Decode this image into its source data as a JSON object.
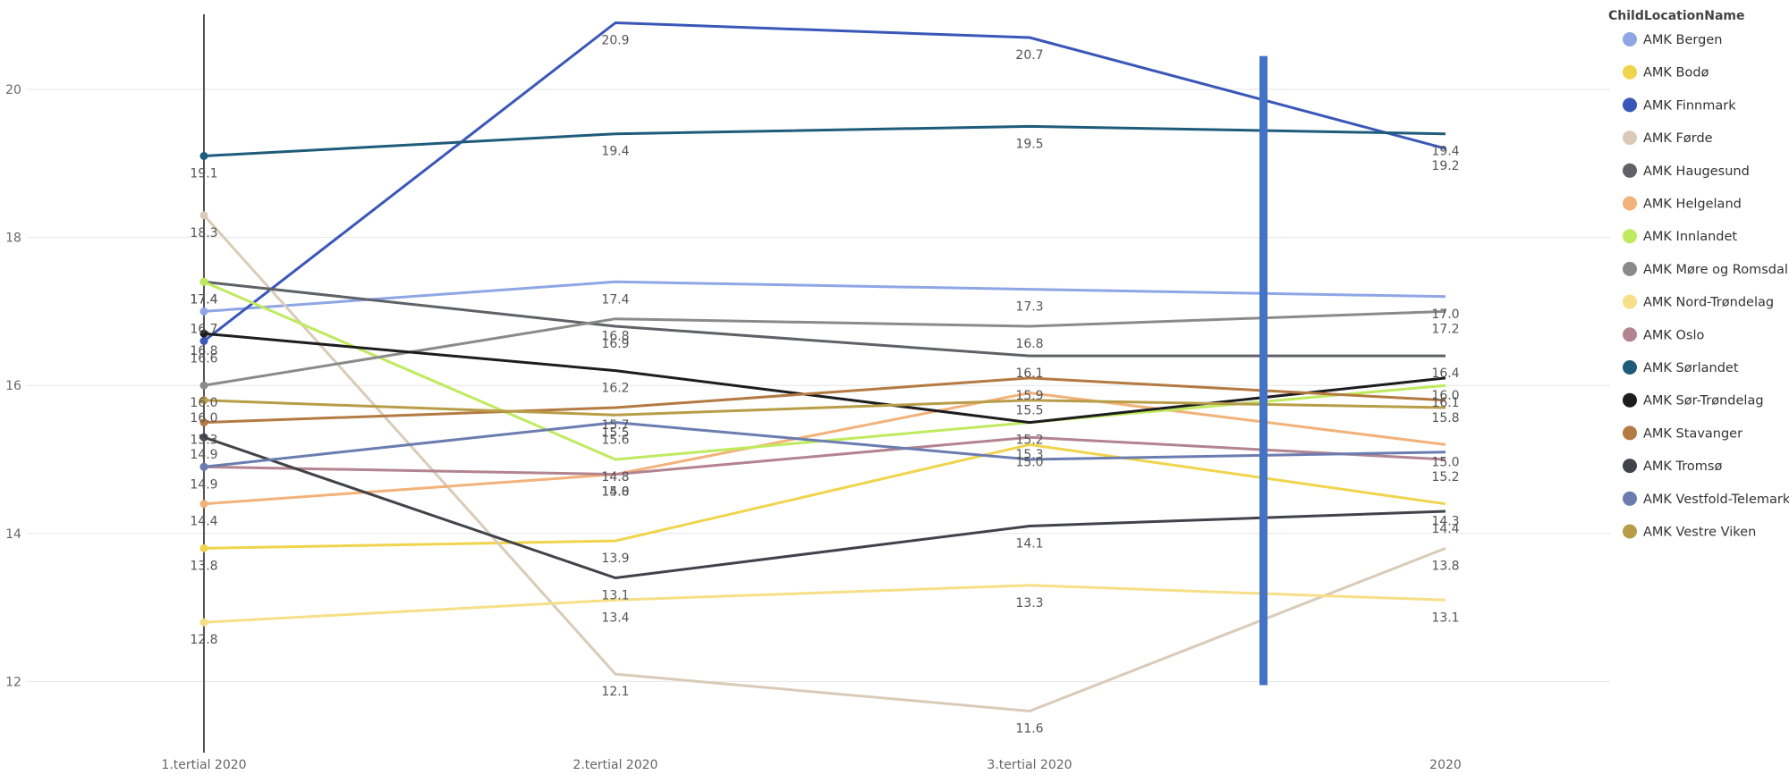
{
  "chart_data": {
    "type": "line",
    "title": "",
    "xlabel": "",
    "ylabel": "",
    "categories": [
      "1.tertial 2020",
      "2.tertial 2020",
      "3.tertial 2020",
      "2020"
    ],
    "ylim": [
      11.25,
      21.0
    ],
    "y_ticks": [
      12,
      14,
      16,
      18,
      20
    ],
    "grid": true,
    "legend_title": "ChildLocationName",
    "legend_position": "right",
    "series": [
      {
        "name": "AMK Bergen",
        "color": "#8ea6e6",
        "values": [
          17.0,
          17.4,
          17.3,
          17.2
        ]
      },
      {
        "name": "AMK Bodø",
        "color": "#f0d44c",
        "values": [
          13.8,
          13.9,
          15.2,
          14.4
        ]
      },
      {
        "name": "AMK Finnmark",
        "color": "#3a57b8",
        "values": [
          16.6,
          20.9,
          20.7,
          19.2
        ]
      },
      {
        "name": "AMK Førde",
        "color": "#d9cbb8",
        "values": [
          18.3,
          12.1,
          11.6,
          13.8
        ]
      },
      {
        "name": "AMK Haugesund",
        "color": "#5f6166",
        "values": [
          17.4,
          16.8,
          16.4,
          16.4
        ]
      },
      {
        "name": "AMK Helgeland",
        "color": "#f2b27a",
        "values": [
          14.4,
          14.8,
          15.9,
          15.2
        ]
      },
      {
        "name": "AMK Innlandet",
        "color": "#c0ea5e",
        "values": [
          17.4,
          15.0,
          15.5,
          16.0
        ]
      },
      {
        "name": "AMK Møre og Romsdal",
        "color": "#8a8a8a",
        "values": [
          16.0,
          16.9,
          16.8,
          17.0
        ]
      },
      {
        "name": "AMK Nord-Trøndelag",
        "color": "#f6df86",
        "values": [
          12.8,
          13.1,
          13.3,
          13.1
        ]
      },
      {
        "name": "AMK Oslo",
        "color": "#b2848f",
        "values": [
          14.9,
          14.8,
          15.3,
          15.0
        ]
      },
      {
        "name": "AMK Sørlandet",
        "color": "#1f5b7a",
        "values": [
          19.1,
          19.4,
          19.5,
          19.4
        ]
      },
      {
        "name": "AMK Sør-Trøndelag",
        "color": "#1d1d1f",
        "values": [
          16.7,
          16.2,
          15.5,
          16.1
        ]
      },
      {
        "name": "AMK Stavanger",
        "color": "#b37a42",
        "values": [
          15.5,
          15.7,
          16.1,
          15.8
        ]
      },
      {
        "name": "AMK Tromsø",
        "color": "#404349",
        "values": [
          15.3,
          13.4,
          14.1,
          14.3
        ]
      },
      {
        "name": "AMK Vestfold-Telemark",
        "color": "#6b7cb0",
        "values": [
          14.9,
          15.5,
          15.0,
          15.1
        ]
      },
      {
        "name": "AMK Vestre Viken",
        "color": "#b89d48",
        "values": [
          15.8,
          15.6,
          15.8,
          15.7
        ]
      }
    ],
    "data_labels": [
      {
        "category": 0,
        "y": 19.1,
        "text": "19.1"
      },
      {
        "category": 0,
        "y": 18.3,
        "text": "18.3"
      },
      {
        "category": 0,
        "y": 17.4,
        "text": "17.4"
      },
      {
        "category": 0,
        "y": 17.4,
        "text": "17.4"
      },
      {
        "category": 0,
        "y": 17.0,
        "text": "16.7"
      },
      {
        "category": 0,
        "y": 16.7,
        "text": "16.8"
      },
      {
        "category": 0,
        "y": 16.6,
        "text": "16.6"
      },
      {
        "category": 0,
        "y": 16.0,
        "text": "16.0"
      },
      {
        "category": 0,
        "y": 15.8,
        "text": "16.0"
      },
      {
        "category": 0,
        "y": 15.5,
        "text": "15.3"
      },
      {
        "category": 0,
        "y": 15.3,
        "text": "14.9"
      },
      {
        "category": 0,
        "y": 14.9,
        "text": "14.9"
      },
      {
        "category": 0,
        "y": 14.4,
        "text": "14.4"
      },
      {
        "category": 0,
        "y": 13.8,
        "text": "13.8"
      },
      {
        "category": 0,
        "y": 12.8,
        "text": "12.8"
      },
      {
        "category": 1,
        "y": 20.9,
        "text": "20.9"
      },
      {
        "category": 1,
        "y": 19.4,
        "text": "19.4"
      },
      {
        "category": 1,
        "y": 17.4,
        "text": "17.4"
      },
      {
        "category": 1,
        "y": 16.9,
        "text": "16.8"
      },
      {
        "category": 1,
        "y": 16.8,
        "text": "16.9"
      },
      {
        "category": 1,
        "y": 16.2,
        "text": "16.2"
      },
      {
        "category": 1,
        "y": 15.7,
        "text": "15.7"
      },
      {
        "category": 1,
        "y": 15.6,
        "text": "15.5"
      },
      {
        "category": 1,
        "y": 15.5,
        "text": "15.6"
      },
      {
        "category": 1,
        "y": 15.0,
        "text": "14.8"
      },
      {
        "category": 1,
        "y": 14.8,
        "text": "15.0"
      },
      {
        "category": 1,
        "y": 14.8,
        "text": "14.8"
      },
      {
        "category": 1,
        "y": 13.9,
        "text": "13.9"
      },
      {
        "category": 1,
        "y": 13.4,
        "text": "13.1"
      },
      {
        "category": 1,
        "y": 13.1,
        "text": "13.4"
      },
      {
        "category": 1,
        "y": 12.1,
        "text": "12.1"
      },
      {
        "category": 2,
        "y": 20.7,
        "text": "20.7"
      },
      {
        "category": 2,
        "y": 19.5,
        "text": "19.5"
      },
      {
        "category": 2,
        "y": 17.3,
        "text": "17.3"
      },
      {
        "category": 2,
        "y": 16.8,
        "text": "16.8"
      },
      {
        "category": 2,
        "y": 16.4,
        "text": "16.1"
      },
      {
        "category": 2,
        "y": 16.1,
        "text": "15.9"
      },
      {
        "category": 2,
        "y": 15.9,
        "text": "15.5"
      },
      {
        "category": 2,
        "y": 15.5,
        "text": "15.2"
      },
      {
        "category": 2,
        "y": 15.3,
        "text": "15.3"
      },
      {
        "category": 2,
        "y": 15.2,
        "text": "15.0"
      },
      {
        "category": 2,
        "y": 14.1,
        "text": "14.1"
      },
      {
        "category": 2,
        "y": 13.3,
        "text": "13.3"
      },
      {
        "category": 2,
        "y": 11.6,
        "text": "11.6"
      },
      {
        "category": 3,
        "y": 19.4,
        "text": "19.4"
      },
      {
        "category": 3,
        "y": 19.2,
        "text": "19.2"
      },
      {
        "category": 3,
        "y": 17.2,
        "text": "17.0"
      },
      {
        "category": 3,
        "y": 17.0,
        "text": "17.2"
      },
      {
        "category": 3,
        "y": 16.4,
        "text": "16.4"
      },
      {
        "category": 3,
        "y": 16.1,
        "text": "16.0"
      },
      {
        "category": 3,
        "y": 16.0,
        "text": "16.1"
      },
      {
        "category": 3,
        "y": 15.8,
        "text": "15.8"
      },
      {
        "category": 3,
        "y": 15.2,
        "text": "15.0"
      },
      {
        "category": 3,
        "y": 15.0,
        "text": "15.2"
      },
      {
        "category": 3,
        "y": 14.4,
        "text": "14.3"
      },
      {
        "category": 3,
        "y": 14.3,
        "text": "14.4"
      },
      {
        "category": 3,
        "y": 13.8,
        "text": "13.8"
      },
      {
        "category": 3,
        "y": 13.1,
        "text": "13.1"
      }
    ],
    "annotations": {
      "reference_line_category": "1.tertial 2020",
      "reference_line_color": "#555555",
      "highlight_bar_color": "#4472c4",
      "highlight_bar_yrange": [
        11.95,
        20.45
      ]
    }
  }
}
